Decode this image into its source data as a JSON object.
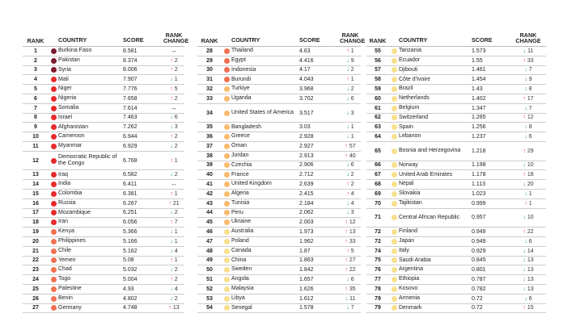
{
  "headers": {
    "rank": "RANK",
    "country": "COUNTRY",
    "score": "SCORE",
    "change_1": "RANK",
    "change_2": "CHANGE"
  },
  "level_colors": {
    "1": "#7c1a2e",
    "2": "#e82a2a",
    "3": "#f2704f",
    "4": "#f9bb6c",
    "5": "#f8e08c"
  },
  "change_colors": {
    "up": "#e8262b",
    "down": "#1b8a7c",
    "same": "#222222"
  },
  "columns": [
    {
      "rows": [
        {
          "rank": "1",
          "country": "Burkina Faso",
          "score": "8.581",
          "dir": "same",
          "n": "",
          "level": 1
        },
        {
          "rank": "2",
          "country": "Pakistan",
          "score": "8.374",
          "dir": "up",
          "n": "2",
          "level": 1
        },
        {
          "rank": "3",
          "country": "Syria",
          "score": "8.006",
          "dir": "up",
          "n": "2",
          "level": 1
        },
        {
          "rank": "4",
          "country": "Mali",
          "score": "7.907",
          "dir": "down",
          "n": "1",
          "level": 2
        },
        {
          "rank": "5",
          "country": "Niger",
          "score": "7.776",
          "dir": "up",
          "n": "5",
          "level": 2
        },
        {
          "rank": "6",
          "country": "Nigeria",
          "score": "7.658",
          "dir": "up",
          "n": "2",
          "level": 2
        },
        {
          "rank": "7",
          "country": "Somalia",
          "score": "7.614",
          "dir": "same",
          "n": "",
          "level": 2
        },
        {
          "rank": "8",
          "country": "Israel",
          "score": "7.463",
          "dir": "down",
          "n": "6",
          "level": 2
        },
        {
          "rank": "9",
          "country": "Afghanistan",
          "score": "7.262",
          "dir": "down",
          "n": "3",
          "level": 2
        },
        {
          "rank": "10",
          "country": "Cameroon",
          "score": "6.944",
          "dir": "up",
          "n": "2",
          "level": 2
        },
        {
          "rank": "11",
          "country": "Myanmar",
          "score": "6.929",
          "dir": "down",
          "n": "2",
          "level": 2
        },
        {
          "rank": "12",
          "country": "Democratic Republic of the Congo",
          "score": "6.768",
          "dir": "up",
          "n": "1",
          "level": 2,
          "tall": true
        },
        {
          "rank": "13",
          "country": "Iraq",
          "score": "6.582",
          "dir": "down",
          "n": "2",
          "level": 2
        },
        {
          "rank": "14",
          "country": "India",
          "score": "6.411",
          "dir": "same",
          "n": "",
          "level": 2
        },
        {
          "rank": "15",
          "country": "Colombia",
          "score": "6.381",
          "dir": "up",
          "n": "1",
          "level": 2
        },
        {
          "rank": "16",
          "country": "Russia",
          "score": "6.267",
          "dir": "up",
          "n": "21",
          "level": 2
        },
        {
          "rank": "17",
          "country": "Mozambique",
          "score": "6.251",
          "dir": "down",
          "n": "2",
          "level": 2
        },
        {
          "rank": "18",
          "country": "Iran",
          "score": "6.056",
          "dir": "up",
          "n": "7",
          "level": 2
        },
        {
          "rank": "19",
          "country": "Kenya",
          "score": "5.366",
          "dir": "down",
          "n": "1",
          "level": 3
        },
        {
          "rank": "20",
          "country": "Philippines",
          "score": "5.166",
          "dir": "down",
          "n": "1",
          "level": 3
        },
        {
          "rank": "21",
          "country": "Chile",
          "score": "5.162",
          "dir": "down",
          "n": "4",
          "level": 3
        },
        {
          "rank": "22",
          "country": "Yemen",
          "score": "5.08",
          "dir": "up",
          "n": "1",
          "level": 3
        },
        {
          "rank": "23",
          "country": "Chad",
          "score": "5.032",
          "dir": "down",
          "n": "2",
          "level": 3
        },
        {
          "rank": "24",
          "country": "Togo",
          "score": "5.004",
          "dir": "up",
          "n": "2",
          "level": 3
        },
        {
          "rank": "25",
          "country": "Palestine",
          "score": "4.93",
          "dir": "down",
          "n": "4",
          "level": 3
        },
        {
          "rank": "26",
          "country": "Benin",
          "score": "4.802",
          "dir": "down",
          "n": "2",
          "level": 3
        },
        {
          "rank": "27",
          "country": "Germany",
          "score": "4.748",
          "dir": "up",
          "n": "13",
          "level": 3
        }
      ]
    },
    {
      "rows": [
        {
          "rank": "28",
          "country": "Thailand",
          "score": "4.63",
          "dir": "up",
          "n": "1",
          "level": 3
        },
        {
          "rank": "29",
          "country": "Egypt",
          "score": "4.416",
          "dir": "down",
          "n": "9",
          "level": 3
        },
        {
          "rank": "30",
          "country": "Indonesia",
          "score": "4.17",
          "dir": "down",
          "n": "2",
          "level": 3
        },
        {
          "rank": "31",
          "country": "Burundi",
          "score": "4.043",
          "dir": "up",
          "n": "1",
          "level": 3
        },
        {
          "rank": "32",
          "country": "Turkiye",
          "score": "3.968",
          "dir": "down",
          "n": "2",
          "level": 4
        },
        {
          "rank": "33",
          "country": "Uganda",
          "score": "3.702",
          "dir": "down",
          "n": "6",
          "level": 4
        },
        {
          "rank": "34",
          "country": "United States of America",
          "score": "3.517",
          "dir": "down",
          "n": "3",
          "level": 4,
          "tall": true
        },
        {
          "rank": "35",
          "country": "Bangladesh",
          "score": "3.03",
          "dir": "down",
          "n": "1",
          "level": 4
        },
        {
          "rank": "36",
          "country": "Greece",
          "score": "2.928",
          "dir": "down",
          "n": "1",
          "level": 4
        },
        {
          "rank": "37",
          "country": "Oman",
          "score": "2.927",
          "dir": "up",
          "n": "57",
          "level": 4
        },
        {
          "rank": "38",
          "country": "Jordan",
          "score": "2.913",
          "dir": "up",
          "n": "40",
          "level": 4
        },
        {
          "rank": "39",
          "country": "Czechia",
          "score": "2.906",
          "dir": "down",
          "n": "6",
          "level": 4
        },
        {
          "rank": "40",
          "country": "France",
          "score": "2.712",
          "dir": "down",
          "n": "2",
          "level": 4
        },
        {
          "rank": "41",
          "country": "United Kingdom",
          "score": "2.639",
          "dir": "up",
          "n": "2",
          "level": 4
        },
        {
          "rank": "42",
          "country": "Algeria",
          "score": "2.415",
          "dir": "up",
          "n": "4",
          "level": 4
        },
        {
          "rank": "43",
          "country": "Tunisia",
          "score": "2.184",
          "dir": "down",
          "n": "4",
          "level": 4
        },
        {
          "rank": "44",
          "country": "Peru",
          "score": "2.062",
          "dir": "down",
          "n": "3",
          "level": 4
        },
        {
          "rank": "45",
          "country": "Ukraine",
          "score": "2.003",
          "dir": "up",
          "n": "12",
          "level": 4
        },
        {
          "rank": "46",
          "country": "Australia",
          "score": "1.973",
          "dir": "up",
          "n": "13",
          "level": 5
        },
        {
          "rank": "47",
          "country": "Poland",
          "score": "1.962",
          "dir": "up",
          "n": "33",
          "level": 5
        },
        {
          "rank": "48",
          "country": "Canada",
          "score": "1.87",
          "dir": "up",
          "n": "5",
          "level": 5
        },
        {
          "rank": "49",
          "country": "China",
          "score": "1.863",
          "dir": "up",
          "n": "27",
          "level": 5
        },
        {
          "rank": "50",
          "country": "Sweden",
          "score": "1.842",
          "dir": "up",
          "n": "22",
          "level": 5
        },
        {
          "rank": "51",
          "country": "Angola",
          "score": "1.657",
          "dir": "down",
          "n": "6",
          "level": 5
        },
        {
          "rank": "52",
          "country": "Malaysia",
          "score": "1.626",
          "dir": "up",
          "n": "35",
          "level": 5
        },
        {
          "rank": "53",
          "country": "Libya",
          "score": "1.612",
          "dir": "down",
          "n": "11",
          "level": 5
        },
        {
          "rank": "54",
          "country": "Senegal",
          "score": "1.578",
          "dir": "down",
          "n": "7",
          "level": 5
        }
      ]
    },
    {
      "rows": [
        {
          "rank": "55",
          "country": "Tanzania",
          "score": "1.573",
          "dir": "down",
          "n": "11",
          "level": 5
        },
        {
          "rank": "56",
          "country": "Ecuador",
          "score": "1.55",
          "dir": "up",
          "n": "33",
          "level": 5
        },
        {
          "rank": "57",
          "country": "Djibouti",
          "score": "1.461",
          "dir": "down",
          "n": "7",
          "level": 5
        },
        {
          "rank": "58",
          "country": "Côte d'Ivoire",
          "score": "1.454",
          "dir": "down",
          "n": "9",
          "level": 5
        },
        {
          "rank": "59",
          "country": "Brazil",
          "score": "1.43",
          "dir": "down",
          "n": "8",
          "level": 5
        },
        {
          "rank": "60",
          "country": "Netherlands",
          "score": "1.402",
          "dir": "up",
          "n": "17",
          "level": 5
        },
        {
          "rank": "61",
          "country": "Belgium",
          "score": "1.347",
          "dir": "down",
          "n": "7",
          "level": 5
        },
        {
          "rank": "62",
          "country": "Switzerland",
          "score": "1.265",
          "dir": "up",
          "n": "12",
          "level": 5
        },
        {
          "rank": "63",
          "country": "Spain",
          "score": "1.256",
          "dir": "down",
          "n": "8",
          "level": 5
        },
        {
          "rank": "64",
          "country": "Lebanon",
          "score": "1.237",
          "dir": "down",
          "n": "6",
          "level": 5
        },
        {
          "rank": "65",
          "country": "Bosnia and Herzegovina",
          "score": "1.218",
          "dir": "up",
          "n": "29",
          "level": 5,
          "tall": true
        },
        {
          "rank": "66",
          "country": "Norway",
          "score": "1.198",
          "dir": "down",
          "n": "10",
          "level": 5
        },
        {
          "rank": "67",
          "country": "United Arab Emirates",
          "score": "1.178",
          "dir": "up",
          "n": "18",
          "level": 5
        },
        {
          "rank": "68",
          "country": "Nepal",
          "score": "1.113",
          "dir": "down",
          "n": "20",
          "level": 5
        },
        {
          "rank": "69",
          "country": "Slovakia",
          "score": "1.023",
          "dir": "down",
          "n": "1",
          "level": 5
        },
        {
          "rank": "70",
          "country": "Tajikistan",
          "score": "0.999",
          "dir": "up",
          "n": "1",
          "level": 5
        },
        {
          "rank": "71",
          "country": "Central African Republic",
          "score": "0.957",
          "dir": "down",
          "n": "10",
          "level": 5,
          "tall": true
        },
        {
          "rank": "72",
          "country": "Finland",
          "score": "0.949",
          "dir": "up",
          "n": "22",
          "level": 5
        },
        {
          "rank": "72",
          "country": "Japan",
          "score": "0.949",
          "dir": "down",
          "n": "6",
          "level": 5
        },
        {
          "rank": "74",
          "country": "Italy",
          "score": "0.929",
          "dir": "down",
          "n": "14",
          "level": 5
        },
        {
          "rank": "75",
          "country": "Saudi Arabia",
          "score": "0.845",
          "dir": "down",
          "n": "13",
          "level": 5
        },
        {
          "rank": "76",
          "country": "Argentina",
          "score": "0.801",
          "dir": "down",
          "n": "13",
          "level": 5
        },
        {
          "rank": "77",
          "country": "Ethiopia",
          "score": "0.787",
          "dir": "down",
          "n": "13",
          "level": 5
        },
        {
          "rank": "78",
          "country": "Kosovo",
          "score": "0.782",
          "dir": "down",
          "n": "13",
          "level": 5
        },
        {
          "rank": "79",
          "country": "Armenia",
          "score": "0.72",
          "dir": "down",
          "n": "6",
          "level": 5
        },
        {
          "rank": "79",
          "country": "Denmark",
          "score": "0.72",
          "dir": "up",
          "n": "15",
          "level": 5
        }
      ]
    }
  ]
}
